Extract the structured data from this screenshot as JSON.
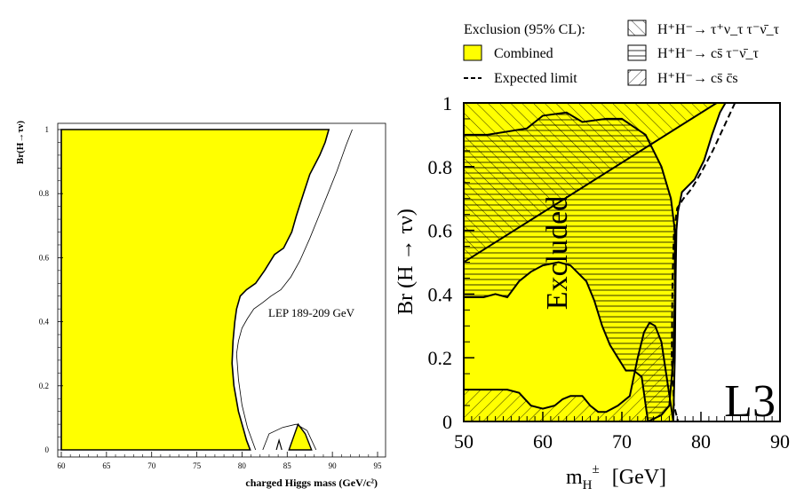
{
  "chart_data": [
    {
      "type": "area",
      "xlabel": "charged Higgs mass (GeV/c²)",
      "ylabel": "Br(H→τν)",
      "xlim": [
        60,
        95
      ],
      "ylim": [
        0,
        1
      ],
      "xticks": [
        "60",
        "65",
        "70",
        "75",
        "80",
        "85",
        "90",
        "95"
      ],
      "yticks": [
        "0",
        "0.2",
        "0.4",
        "0.6",
        "0.8",
        "1"
      ],
      "annotation": "LEP 189-209 GeV",
      "fill_color": "#ffff00",
      "excluded_region_boundary": {
        "x": [
          60,
          89.6,
          89.2,
          88.6,
          87.5,
          86.8,
          86.0,
          85.5,
          84.6,
          83.6,
          82.5,
          81.5,
          80.5,
          79.8,
          79.4,
          79.2,
          79.0,
          78.9,
          79.1,
          79.6,
          80.2,
          80.5,
          80.9,
          60
        ],
        "y": [
          1.0,
          1.0,
          0.96,
          0.92,
          0.86,
          0.8,
          0.73,
          0.68,
          0.63,
          0.61,
          0.56,
          0.52,
          0.5,
          0.48,
          0.44,
          0.4,
          0.34,
          0.27,
          0.2,
          0.12,
          0.06,
          0.03,
          0.0,
          0.0
        ]
      },
      "expected_limit": {
        "x": [
          92.2,
          91.5,
          90.5,
          89.5,
          88.5,
          87.5,
          86.4,
          85.4,
          84.3,
          83.2,
          82.3,
          81.3,
          80.6,
          80.0,
          79.6,
          79.4,
          79.6,
          80.0,
          80.6,
          81.5
        ],
        "y": [
          1.0,
          0.95,
          0.87,
          0.8,
          0.73,
          0.66,
          0.59,
          0.54,
          0.5,
          0.48,
          0.46,
          0.44,
          0.41,
          0.38,
          0.34,
          0.3,
          0.22,
          0.14,
          0.07,
          0.0
        ]
      },
      "small_island": {
        "x": [
          85.2,
          86.2,
          87.0,
          87.7,
          86.2,
          85.4
        ],
        "y": [
          0.0,
          0.08,
          0.05,
          0.0,
          0.0,
          0.0
        ]
      }
    },
    {
      "type": "area",
      "xlabel": "m",
      "xlabel_sub": "H",
      "xlabel_sup": "±",
      "xlabel_unit": "[GeV]",
      "ylabel": "Br (H → τν)",
      "xlim": [
        50,
        90
      ],
      "ylim": [
        0,
        1
      ],
      "xticks": [
        "50",
        "60",
        "70",
        "80",
        "90"
      ],
      "yticks": [
        "0",
        "0.2",
        "0.4",
        "0.6",
        "0.8",
        "1"
      ],
      "annotation": "Excluded",
      "experiment_label": "L3",
      "legend_title": "Exclusion (95% CL):",
      "legend": [
        {
          "label": "Combined",
          "style": "filled",
          "color": "#ffff00"
        },
        {
          "label": "Expected limit",
          "style": "dashed"
        },
        {
          "label": "H⁺H⁻→ τ⁺ν_τ τ⁻ν̄_τ",
          "style": "hatch-diagonal"
        },
        {
          "label": "H⁺H⁻→ cs̄ τ⁻ν̄_τ",
          "style": "hatch-horizontal"
        },
        {
          "label": "H⁺H⁻→ cs̄ c̄s",
          "style": "hatch-anti-diagonal"
        }
      ],
      "combined_region": {
        "x": [
          50,
          83.1,
          82.4,
          81.4,
          80.4,
          79.2,
          77.6,
          77.1,
          76.9,
          76.8,
          76.7,
          76.5,
          50
        ],
        "y": [
          1.0,
          1.0,
          0.97,
          0.9,
          0.82,
          0.76,
          0.72,
          0.66,
          0.6,
          0.45,
          0.2,
          0.0,
          0.0
        ]
      },
      "tau_tau_region": {
        "x": [
          50,
          82.0,
          50
        ],
        "y": [
          1.0,
          1.0,
          0.5
        ]
      },
      "cs_tau_region": {
        "x": [
          50,
          53,
          58,
          60,
          63,
          65,
          68,
          70,
          73,
          75,
          76.2,
          76.7,
          76.7,
          76.5,
          76.0,
          75.0,
          73.3,
          72.5,
          71.5,
          70.5,
          69.5,
          68.5,
          67.5,
          66.5,
          65.5,
          63.5,
          62.0,
          60.0,
          58.5,
          57.0,
          55.5,
          54.0,
          52.5,
          50
        ],
        "y": [
          0.9,
          0.9,
          0.92,
          0.96,
          0.97,
          0.94,
          0.95,
          0.95,
          0.9,
          0.8,
          0.7,
          0.6,
          0.4,
          0.2,
          0.05,
          0.02,
          0.0,
          0.14,
          0.16,
          0.16,
          0.2,
          0.24,
          0.3,
          0.38,
          0.44,
          0.49,
          0.5,
          0.49,
          0.47,
          0.44,
          0.39,
          0.4,
          0.39,
          0.39
        ]
      },
      "cs_cs_region": {
        "x": [
          50,
          55.5,
          57.0,
          58.5,
          60.0,
          61.5,
          62.5,
          63.5,
          65.0,
          66.0,
          67.0,
          68.0,
          69.5,
          71.0,
          72.0,
          72.8,
          73.5,
          74.2,
          75.0,
          76.5,
          76.5,
          50
        ],
        "y": [
          0.1,
          0.1,
          0.09,
          0.05,
          0.04,
          0.05,
          0.07,
          0.08,
          0.08,
          0.05,
          0.03,
          0.03,
          0.05,
          0.08,
          0.2,
          0.28,
          0.31,
          0.3,
          0.25,
          0.0,
          0.0,
          0.0
        ]
      },
      "expected_limit": {
        "x": [
          84.3,
          83.0,
          81.5,
          80.0,
          78.8,
          77.8,
          77.0,
          76.6,
          76.4,
          76.3,
          76.6,
          77.1
        ],
        "y": [
          1.0,
          0.93,
          0.85,
          0.78,
          0.73,
          0.7,
          0.67,
          0.6,
          0.45,
          0.2,
          0.05,
          0.0
        ]
      }
    }
  ]
}
